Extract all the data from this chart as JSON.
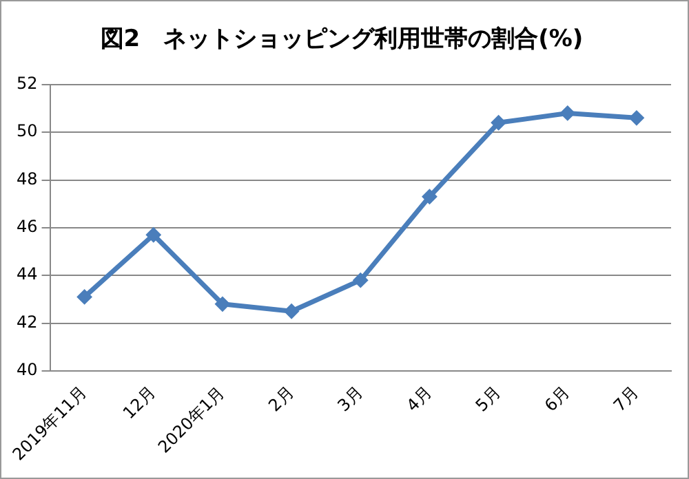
{
  "chart_data": {
    "type": "line",
    "title": "図2　ネットショッピング利用世帯の割合(%)",
    "categories": [
      "2019年11月",
      "12月",
      "2020年1月",
      "2月",
      "3月",
      "4月",
      "5月",
      "6月",
      "7月"
    ],
    "series": [
      {
        "color": "#4a7ebb",
        "values": [
          43.1,
          45.7,
          42.8,
          42.5,
          43.8,
          47.3,
          50.4,
          50.8,
          50.6
        ]
      }
    ],
    "ylim": [
      40,
      52
    ],
    "yticks": [
      40,
      42,
      44,
      46,
      48,
      50,
      52
    ],
    "grid": "y",
    "legend": false,
    "marker": "diamond",
    "line_style": "solid"
  }
}
